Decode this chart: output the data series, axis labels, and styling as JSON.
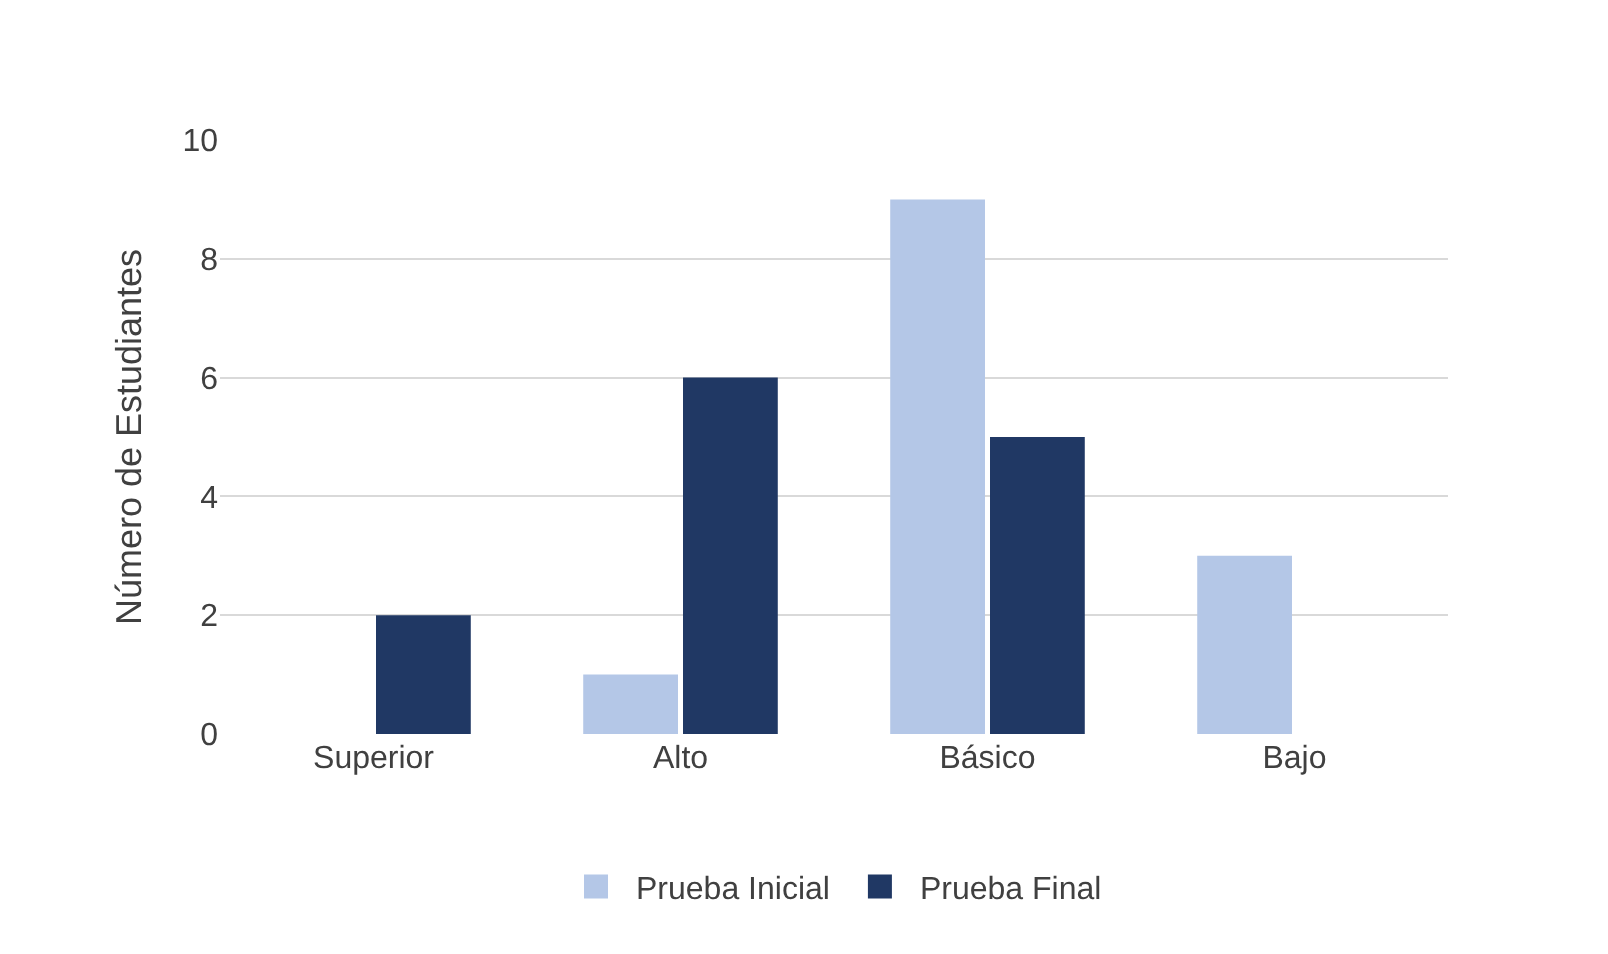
{
  "chart_data": {
    "type": "bar",
    "ylabel": "Número de Estudiantes",
    "categories": [
      "Superior",
      "Alto",
      "Básico",
      "Bajo"
    ],
    "series": [
      {
        "name": "Prueba Inicial",
        "color": "#b4c7e7",
        "values": [
          0,
          1,
          9,
          3
        ]
      },
      {
        "name": "Prueba Final",
        "color": "#203864",
        "values": [
          2,
          6,
          5,
          0
        ]
      }
    ],
    "ylim": [
      0,
      10
    ],
    "yticks": [
      0,
      2,
      4,
      6,
      8,
      10
    ],
    "grid": "y",
    "legend": "bottom"
  }
}
